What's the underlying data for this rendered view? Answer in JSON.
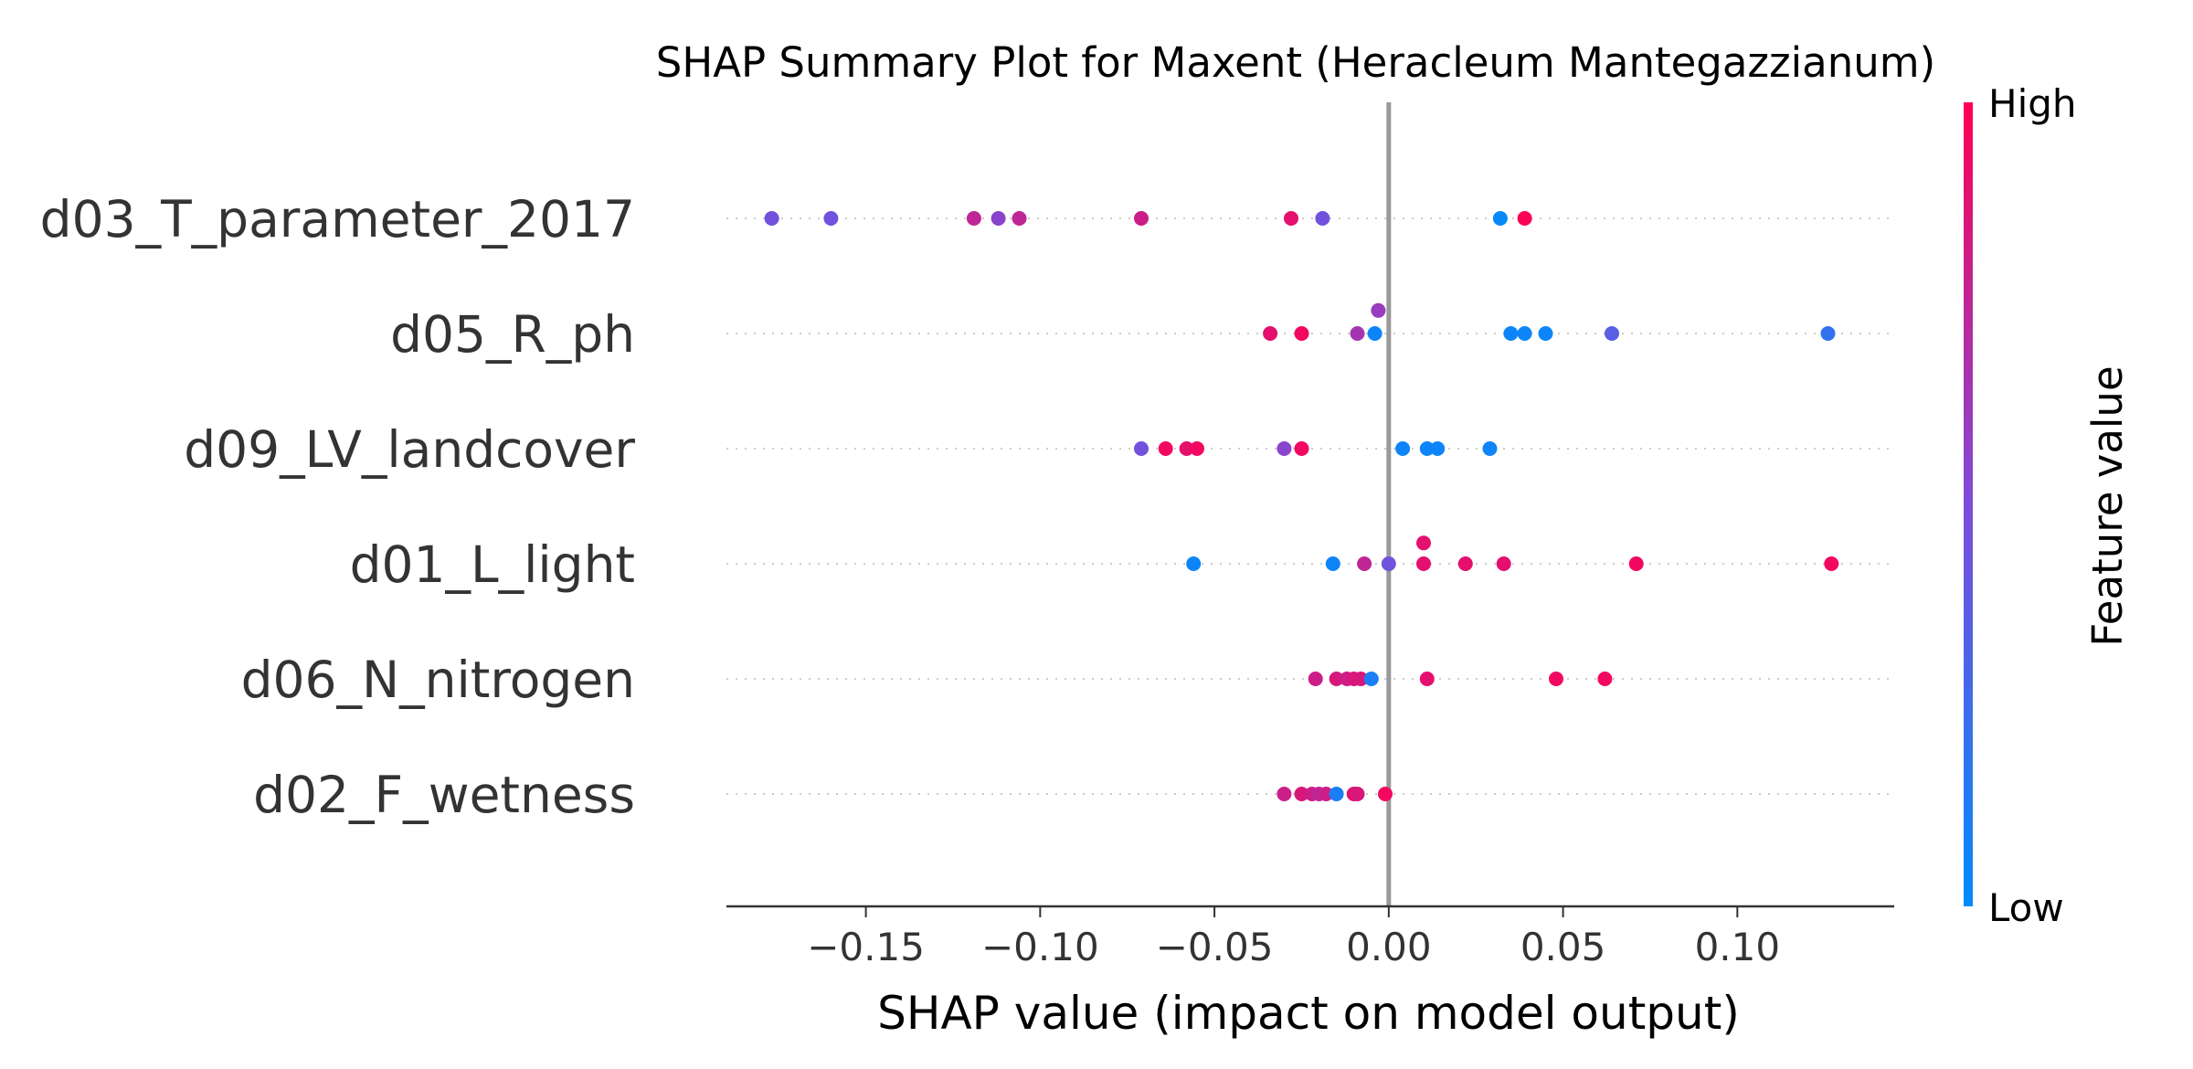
{
  "chart_data": {
    "type": "scatter",
    "subtype": "shap-beeswarm",
    "title": "SHAP Summary Plot for Maxent (Heracleum Mantegazzianum)",
    "xlabel": "SHAP value (impact on model output)",
    "xlim": [
      -0.19,
      0.145
    ],
    "x_ticks": [
      -0.15,
      -0.1,
      -0.05,
      0.0,
      0.05,
      0.1
    ],
    "x_tick_labels": [
      "−0.15",
      "−0.10",
      "−0.05",
      "0.00",
      "0.05",
      "0.10"
    ],
    "grid": "dotted horizontal guide per feature",
    "colorbar": {
      "title": "Feature value",
      "high_label": "High",
      "low_label": "Low",
      "colors": [
        "#008bfb",
        "#7d4cd9",
        "#ff0052"
      ]
    },
    "features": [
      {
        "name": "d03_T_parameter_2017",
        "points": [
          {
            "x": -0.177,
            "v": 0.45,
            "dy": 0
          },
          {
            "x": -0.16,
            "v": 0.45,
            "dy": 0
          },
          {
            "x": -0.119,
            "v": 0.75,
            "dy": 0
          },
          {
            "x": -0.112,
            "v": 0.55,
            "dy": 0
          },
          {
            "x": -0.106,
            "v": 0.75,
            "dy": 0
          },
          {
            "x": -0.071,
            "v": 0.8,
            "dy": 0
          },
          {
            "x": -0.028,
            "v": 0.9,
            "dy": 0
          },
          {
            "x": -0.019,
            "v": 0.45,
            "dy": 0
          },
          {
            "x": 0.032,
            "v": 0.02,
            "dy": 0
          },
          {
            "x": 0.039,
            "v": 0.98,
            "dy": 0
          }
        ]
      },
      {
        "name": "d05_R_ph",
        "points": [
          {
            "x": -0.034,
            "v": 0.9,
            "dy": 0
          },
          {
            "x": -0.025,
            "v": 0.95,
            "dy": 0
          },
          {
            "x": -0.003,
            "v": 0.6,
            "dy": -0.2
          },
          {
            "x": -0.009,
            "v": 0.65,
            "dy": 0
          },
          {
            "x": -0.004,
            "v": 0.05,
            "dy": 0
          },
          {
            "x": 0.035,
            "v": 0.05,
            "dy": 0
          },
          {
            "x": 0.039,
            "v": 0.05,
            "dy": 0
          },
          {
            "x": 0.045,
            "v": 0.05,
            "dy": 0
          },
          {
            "x": 0.064,
            "v": 0.35,
            "dy": 0
          },
          {
            "x": 0.126,
            "v": 0.2,
            "dy": 0
          }
        ]
      },
      {
        "name": "d09_LV_landcover",
        "points": [
          {
            "x": -0.071,
            "v": 0.45,
            "dy": 0
          },
          {
            "x": -0.064,
            "v": 0.95,
            "dy": 0
          },
          {
            "x": -0.058,
            "v": 0.9,
            "dy": 0
          },
          {
            "x": -0.055,
            "v": 0.95,
            "dy": 0
          },
          {
            "x": -0.03,
            "v": 0.55,
            "dy": 0
          },
          {
            "x": -0.025,
            "v": 0.95,
            "dy": 0
          },
          {
            "x": 0.004,
            "v": 0.05,
            "dy": 0
          },
          {
            "x": 0.011,
            "v": 0.05,
            "dy": 0
          },
          {
            "x": 0.014,
            "v": 0.05,
            "dy": 0
          },
          {
            "x": 0.029,
            "v": 0.05,
            "dy": 0
          }
        ]
      },
      {
        "name": "d01_L_light",
        "points": [
          {
            "x": -0.056,
            "v": 0.05,
            "dy": 0
          },
          {
            "x": -0.016,
            "v": 0.05,
            "dy": 0
          },
          {
            "x": -0.007,
            "v": 0.75,
            "dy": 0
          },
          {
            "x": 0.0,
            "v": 0.45,
            "dy": 0
          },
          {
            "x": 0.01,
            "v": 0.9,
            "dy": -0.18
          },
          {
            "x": 0.01,
            "v": 0.9,
            "dy": 0
          },
          {
            "x": 0.022,
            "v": 0.9,
            "dy": 0
          },
          {
            "x": 0.033,
            "v": 0.9,
            "dy": 0
          },
          {
            "x": 0.071,
            "v": 0.95,
            "dy": 0
          },
          {
            "x": 0.127,
            "v": 0.95,
            "dy": 0
          }
        ]
      },
      {
        "name": "d06_N_nitrogen",
        "points": [
          {
            "x": -0.021,
            "v": 0.8,
            "dy": 0
          },
          {
            "x": -0.015,
            "v": 0.85,
            "dy": 0
          },
          {
            "x": -0.012,
            "v": 0.8,
            "dy": 0
          },
          {
            "x": -0.01,
            "v": 0.85,
            "dy": 0
          },
          {
            "x": -0.008,
            "v": 0.85,
            "dy": 0
          },
          {
            "x": -0.005,
            "v": 0.1,
            "dy": 0
          },
          {
            "x": 0.011,
            "v": 0.9,
            "dy": 0
          },
          {
            "x": 0.048,
            "v": 0.95,
            "dy": 0
          },
          {
            "x": 0.062,
            "v": 0.95,
            "dy": 0
          }
        ]
      },
      {
        "name": "d02_F_wetness",
        "points": [
          {
            "x": -0.03,
            "v": 0.8,
            "dy": 0
          },
          {
            "x": -0.025,
            "v": 0.85,
            "dy": 0
          },
          {
            "x": -0.022,
            "v": 0.8,
            "dy": 0
          },
          {
            "x": -0.02,
            "v": 0.75,
            "dy": 0
          },
          {
            "x": -0.018,
            "v": 0.8,
            "dy": 0
          },
          {
            "x": -0.015,
            "v": 0.1,
            "dy": 0
          },
          {
            "x": -0.01,
            "v": 0.9,
            "dy": 0
          },
          {
            "x": -0.009,
            "v": 0.85,
            "dy": 0
          },
          {
            "x": -0.001,
            "v": 0.95,
            "dy": 0
          }
        ]
      }
    ]
  }
}
